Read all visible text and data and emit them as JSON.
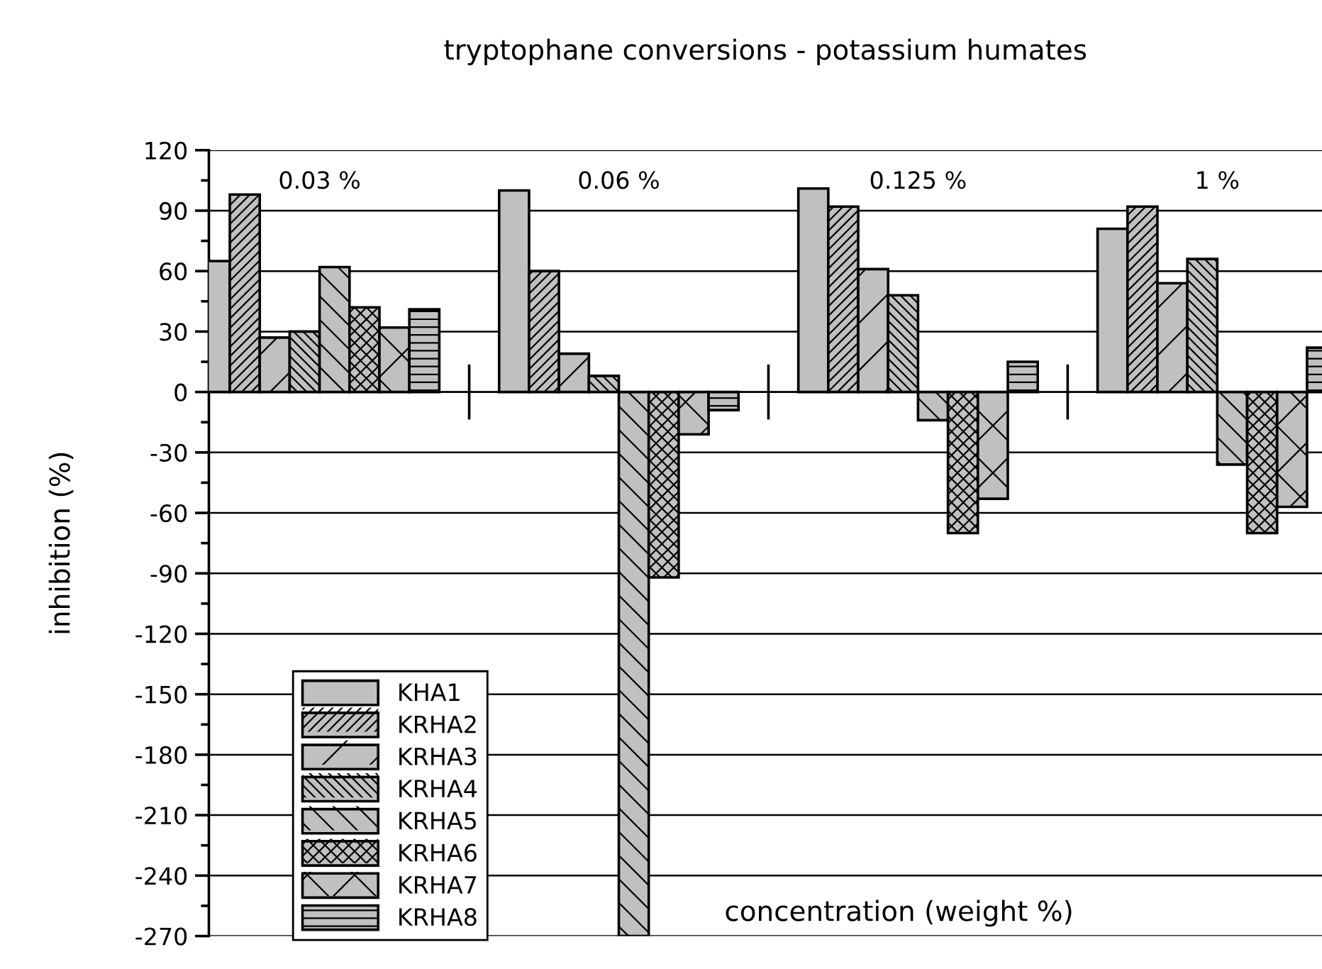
{
  "chart_data": {
    "type": "bar",
    "title": "tryptophane conversions - potassium humates",
    "xlabel": "concentration (weight %)",
    "ylabel": "inhibition (%)",
    "categories": [
      "0.03 %",
      "0.06 %",
      "0.125 %",
      "1 %"
    ],
    "series": [
      {
        "name": "KHA1",
        "color": "#c0c0c0",
        "values": [
          65,
          100,
          101,
          81
        ]
      },
      {
        "name": "KRHA2",
        "color": "#c0c0c0",
        "values": [
          98,
          60,
          92,
          92
        ]
      },
      {
        "name": "KRHA3",
        "color": "#c0c0c0",
        "values": [
          27,
          19,
          61,
          54
        ]
      },
      {
        "name": "KRHA4",
        "color": "#c0c0c0",
        "values": [
          30,
          8,
          48,
          66
        ]
      },
      {
        "name": "KRHA5",
        "color": "#c0c0c0",
        "values": [
          62,
          -270,
          -14,
          -36
        ]
      },
      {
        "name": "KRHA6",
        "color": "#c0c0c0",
        "values": [
          42,
          -92,
          -70,
          -70
        ]
      },
      {
        "name": "KRHA7",
        "color": "#c0c0c0",
        "values": [
          32,
          -21,
          -53,
          -57
        ]
      },
      {
        "name": "KRHA8",
        "color": "#c0c0c0",
        "values": [
          41,
          -9,
          15,
          22
        ]
      }
    ],
    "ylim": [
      -270,
      120
    ],
    "yticks": [
      -270,
      -240,
      -210,
      -180,
      -150,
      -120,
      -90,
      -60,
      -30,
      0,
      30,
      60,
      90,
      120
    ],
    "grid": "y",
    "legend": "bottom left"
  }
}
